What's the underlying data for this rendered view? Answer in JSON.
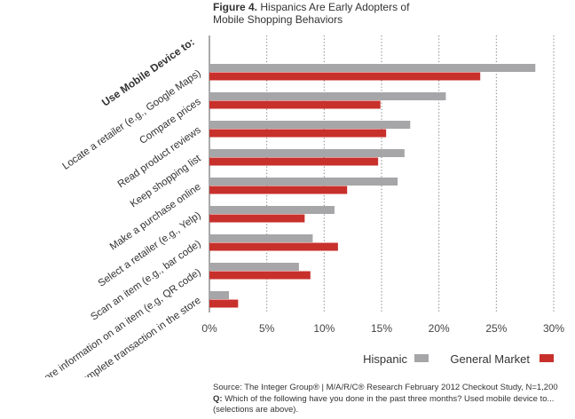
{
  "figure": {
    "number_label": "Figure 4.",
    "title_line1": "Hispanics Are Early Adopters of",
    "title_line2": "Mobile Shopping Behaviors"
  },
  "chart_data": {
    "type": "bar",
    "orientation": "horizontal",
    "y_header": "Use Mobile Device to:",
    "categories": [
      "Locate a retailer (e.g., Google Maps)",
      "Compare prices",
      "Read product reviews",
      "Keep shopping list",
      "Make a purchase online",
      "Select a retailer (e.g., Yelp)",
      "Scan an item (e.g., bar code)",
      "Receive more information on an item (e.g, QR code)",
      "Complete transaction in the store"
    ],
    "series": [
      {
        "name": "Hispanic",
        "color": "#a6a6a8",
        "values": [
          28.4,
          20.6,
          17.5,
          17.0,
          16.4,
          10.9,
          9.0,
          7.8,
          1.7
        ]
      },
      {
        "name": "General Market",
        "color": "#c8302c",
        "values": [
          23.6,
          14.9,
          15.4,
          14.7,
          12.0,
          8.3,
          11.2,
          8.8,
          2.5
        ]
      }
    ],
    "xlim": [
      0,
      30
    ],
    "xticks": [
      "0%",
      "5%",
      "10%",
      "15%",
      "20%",
      "25%",
      "30%"
    ],
    "grid": "vertical dotted",
    "legend_position": "bottom-right"
  },
  "source": {
    "text": "Source: The Integer Group® | M/A/R/C® Research February 2012 Checkout Study, N=1,200",
    "q_label": "Q:",
    "q_text": " Which of the following have you done in the past three months? Used mobile device to... (selections are above)."
  }
}
